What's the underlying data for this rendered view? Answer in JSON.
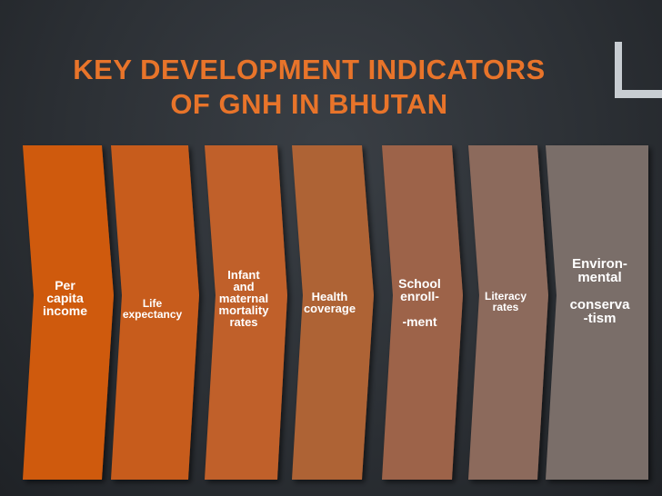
{
  "slide": {
    "title_line1": "KEY DEVELOPMENT INDICATORS",
    "title_line2": "OF GNH IN BHUTAN"
  },
  "indicators": [
    {
      "label": "Per\ncapita\nincome",
      "color": "#cf5a10"
    },
    {
      "label": "Life\nexpectancy",
      "color": "#c75c1c"
    },
    {
      "label": "Infant\nand\nmaternal\nmortality\nrates",
      "color": "#c0602a"
    },
    {
      "label": "Health\ncoverage",
      "color": "#ae6336"
    },
    {
      "label": "School\nenroll-\n\n-ment",
      "color": "#9d6448"
    },
    {
      "label": "Literacy\nrates",
      "color": "#8c6a5c"
    },
    {
      "label": "Environ-\nmental\n\nconserva\n-tism",
      "color": "#7a6e69"
    }
  ]
}
